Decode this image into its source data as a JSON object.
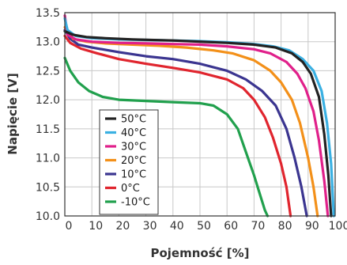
{
  "chart_data": {
    "type": "line",
    "xlabel": "Pojemność [%]",
    "ylabel": "Napięcie [V]",
    "xlim": [
      0,
      100
    ],
    "ylim": [
      10.0,
      13.5
    ],
    "xticks": [
      0,
      10,
      20,
      30,
      40,
      50,
      60,
      70,
      80,
      90,
      100
    ],
    "yticks": [
      10.0,
      10.5,
      11.0,
      11.5,
      12.0,
      12.5,
      13.0,
      13.5
    ],
    "xtick_labels": [
      "0",
      "10",
      "20",
      "30",
      "40",
      "50",
      "60",
      "70",
      "80",
      "90",
      "100"
    ],
    "ytick_labels": [
      "10.0",
      "10.5",
      "11.0",
      "11.5",
      "12.0",
      "12.5",
      "13.0",
      "13.5"
    ],
    "grid": true,
    "legend_position": "bottom-left",
    "series": [
      {
        "name": "50°C",
        "color": "#222222",
        "points": [
          [
            0,
            13.18
          ],
          [
            3,
            13.12
          ],
          [
            8,
            13.08
          ],
          [
            15,
            13.06
          ],
          [
            25,
            13.04
          ],
          [
            40,
            13.02
          ],
          [
            50,
            13.0
          ],
          [
            60,
            12.98
          ],
          [
            70,
            12.95
          ],
          [
            78,
            12.9
          ],
          [
            84,
            12.8
          ],
          [
            88,
            12.65
          ],
          [
            91,
            12.45
          ],
          [
            94,
            12.05
          ],
          [
            96,
            11.4
          ],
          [
            97.5,
            10.7
          ],
          [
            98.5,
            10.0
          ]
        ]
      },
      {
        "name": "40°C",
        "color": "#3ab0e2",
        "points": [
          [
            0,
            13.4
          ],
          [
            1,
            13.2
          ],
          [
            4,
            13.1
          ],
          [
            10,
            13.06
          ],
          [
            20,
            13.04
          ],
          [
            30,
            13.03
          ],
          [
            40,
            13.02
          ],
          [
            50,
            13.01
          ],
          [
            60,
            12.99
          ],
          [
            70,
            12.96
          ],
          [
            77,
            12.92
          ],
          [
            83,
            12.85
          ],
          [
            88,
            12.7
          ],
          [
            92,
            12.5
          ],
          [
            95,
            12.15
          ],
          [
            97,
            11.6
          ],
          [
            98.5,
            10.9
          ],
          [
            99.5,
            10.0
          ]
        ]
      },
      {
        "name": "30°C",
        "color": "#e0208a",
        "points": [
          [
            0,
            13.45
          ],
          [
            1,
            13.12
          ],
          [
            4,
            13.04
          ],
          [
            10,
            13.0
          ],
          [
            20,
            12.98
          ],
          [
            30,
            12.97
          ],
          [
            40,
            12.96
          ],
          [
            50,
            12.95
          ],
          [
            60,
            12.92
          ],
          [
            70,
            12.87
          ],
          [
            76,
            12.8
          ],
          [
            82,
            12.65
          ],
          [
            86,
            12.45
          ],
          [
            89,
            12.2
          ],
          [
            92,
            11.8
          ],
          [
            94,
            11.3
          ],
          [
            96,
            10.6
          ],
          [
            97.3,
            10.0
          ]
        ]
      },
      {
        "name": "20°C",
        "color": "#f39019",
        "points": [
          [
            0,
            13.25
          ],
          [
            3,
            13.05
          ],
          [
            8,
            13.0
          ],
          [
            15,
            12.97
          ],
          [
            25,
            12.95
          ],
          [
            35,
            12.93
          ],
          [
            45,
            12.9
          ],
          [
            55,
            12.85
          ],
          [
            62,
            12.8
          ],
          [
            70,
            12.68
          ],
          [
            76,
            12.5
          ],
          [
            80,
            12.3
          ],
          [
            84,
            12.0
          ],
          [
            87,
            11.6
          ],
          [
            90,
            11.0
          ],
          [
            92,
            10.5
          ],
          [
            93.5,
            10.0
          ]
        ]
      },
      {
        "name": "10°C",
        "color": "#3b3590",
        "points": [
          [
            0,
            13.2
          ],
          [
            2,
            13.05
          ],
          [
            5,
            12.95
          ],
          [
            10,
            12.9
          ],
          [
            20,
            12.82
          ],
          [
            30,
            12.75
          ],
          [
            40,
            12.7
          ],
          [
            50,
            12.62
          ],
          [
            60,
            12.5
          ],
          [
            67,
            12.35
          ],
          [
            73,
            12.15
          ],
          [
            78,
            11.9
          ],
          [
            82,
            11.5
          ],
          [
            85,
            11.0
          ],
          [
            87.5,
            10.5
          ],
          [
            89.5,
            10.0
          ]
        ]
      },
      {
        "name": "0°C",
        "color": "#e0252e",
        "points": [
          [
            0,
            13.1
          ],
          [
            2,
            12.98
          ],
          [
            6,
            12.88
          ],
          [
            12,
            12.8
          ],
          [
            20,
            12.7
          ],
          [
            30,
            12.62
          ],
          [
            40,
            12.55
          ],
          [
            50,
            12.47
          ],
          [
            60,
            12.35
          ],
          [
            66,
            12.2
          ],
          [
            70,
            12.0
          ],
          [
            74,
            11.7
          ],
          [
            77,
            11.35
          ],
          [
            80,
            10.9
          ],
          [
            82,
            10.5
          ],
          [
            83.5,
            10.0
          ]
        ]
      },
      {
        "name": "-10°C",
        "color": "#21a04d",
        "points": [
          [
            0,
            12.72
          ],
          [
            2,
            12.5
          ],
          [
            5,
            12.3
          ],
          [
            9,
            12.15
          ],
          [
            14,
            12.05
          ],
          [
            20,
            12.0
          ],
          [
            30,
            11.98
          ],
          [
            40,
            11.96
          ],
          [
            50,
            11.94
          ],
          [
            55,
            11.9
          ],
          [
            60,
            11.75
          ],
          [
            64,
            11.5
          ],
          [
            67,
            11.1
          ],
          [
            70,
            10.7
          ],
          [
            72,
            10.4
          ],
          [
            74,
            10.1
          ],
          [
            75,
            10.0
          ]
        ]
      }
    ]
  }
}
